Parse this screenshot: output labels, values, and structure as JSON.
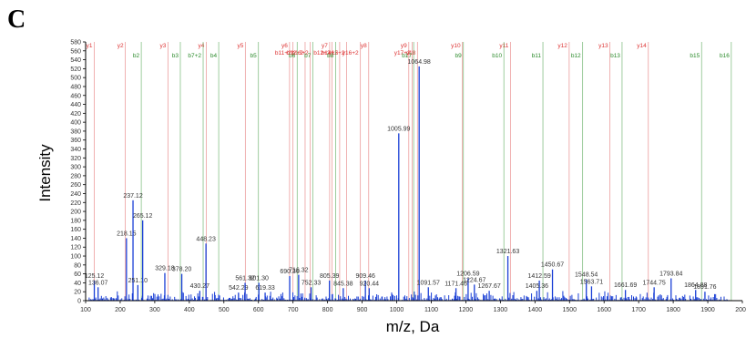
{
  "panel_label": "C",
  "chart_data": {
    "type": "bar",
    "title": "",
    "xlabel": "m/z, Da",
    "ylabel": "Intensity",
    "xlim": [
      100,
      2000
    ],
    "ylim": [
      0,
      580
    ],
    "x_ticks": [
      100,
      200,
      300,
      400,
      500,
      600,
      700,
      800,
      900,
      1000,
      1100,
      1200,
      1300,
      1400,
      1500,
      1600,
      1700,
      1800,
      1900,
      2000
    ],
    "y_ticks": [
      0,
      20,
      40,
      60,
      80,
      100,
      120,
      140,
      160,
      180,
      200,
      220,
      240,
      260,
      280,
      300,
      320,
      340,
      360,
      380,
      400,
      420,
      440,
      460,
      480,
      500,
      520,
      540,
      560,
      580
    ],
    "colors": {
      "peaks": "#1a3fd6",
      "y_ions": "#e26b6b",
      "b_ions": "#3c9a3c",
      "axis": "#000000"
    },
    "labeled_peaks": [
      {
        "x": 125.12,
        "y": 45,
        "label": "125.12"
      },
      {
        "x": 136.07,
        "y": 30,
        "label": "136.07"
      },
      {
        "x": 218.15,
        "y": 140,
        "label": "218.15"
      },
      {
        "x": 237.12,
        "y": 225,
        "label": "237.12"
      },
      {
        "x": 251.1,
        "y": 35,
        "label": "251.10"
      },
      {
        "x": 265.12,
        "y": 180,
        "label": "265.12"
      },
      {
        "x": 329.18,
        "y": 62,
        "label": "329.18"
      },
      {
        "x": 378.2,
        "y": 60,
        "label": "378.20"
      },
      {
        "x": 430.27,
        "y": 22,
        "label": "430.27"
      },
      {
        "x": 448.23,
        "y": 128,
        "label": "448.23"
      },
      {
        "x": 542.29,
        "y": 18,
        "label": "542.29"
      },
      {
        "x": 561.32,
        "y": 40,
        "label": "561.32"
      },
      {
        "x": 601.3,
        "y": 40,
        "label": "601.30"
      },
      {
        "x": 619.33,
        "y": 18,
        "label": "619.33"
      },
      {
        "x": 690.36,
        "y": 55,
        "label": "690.36"
      },
      {
        "x": 716.32,
        "y": 58,
        "label": "716.32"
      },
      {
        "x": 752.33,
        "y": 30,
        "label": "752.33"
      },
      {
        "x": 805.39,
        "y": 45,
        "label": "805.39"
      },
      {
        "x": 845.38,
        "y": 28,
        "label": "845.38"
      },
      {
        "x": 909.46,
        "y": 45,
        "label": "909.46"
      },
      {
        "x": 920.44,
        "y": 28,
        "label": "920.44"
      },
      {
        "x": 1005.99,
        "y": 375,
        "label": "1005.99"
      },
      {
        "x": 1064.98,
        "y": 525,
        "label": "1064.98"
      },
      {
        "x": 1091.57,
        "y": 30,
        "label": "1091.57"
      },
      {
        "x": 1171.46,
        "y": 28,
        "label": "1171.46"
      },
      {
        "x": 1206.59,
        "y": 50,
        "label": "1206.59"
      },
      {
        "x": 1224.67,
        "y": 36,
        "label": "1224.67"
      },
      {
        "x": 1267.67,
        "y": 22,
        "label": "1267.67"
      },
      {
        "x": 1321.63,
        "y": 100,
        "label": "1321.63"
      },
      {
        "x": 1412.59,
        "y": 45,
        "label": "1412.59"
      },
      {
        "x": 1405.36,
        "y": 22,
        "label": "1405.36"
      },
      {
        "x": 1450.67,
        "y": 70,
        "label": "1450.67"
      },
      {
        "x": 1548.54,
        "y": 48,
        "label": "1548.54"
      },
      {
        "x": 1563.71,
        "y": 32,
        "label": "1563.71"
      },
      {
        "x": 1661.69,
        "y": 24,
        "label": "1661.69"
      },
      {
        "x": 1744.75,
        "y": 30,
        "label": "1744.75"
      },
      {
        "x": 1793.84,
        "y": 50,
        "label": "1793.84"
      },
      {
        "x": 1864.88,
        "y": 24,
        "label": "1864.88"
      },
      {
        "x": 1891.76,
        "y": 20,
        "label": "1891.76"
      }
    ],
    "y_ions": [
      {
        "x": 125,
        "label": "y1"
      },
      {
        "x": 215,
        "label": "y2"
      },
      {
        "x": 338,
        "label": "y3"
      },
      {
        "x": 449,
        "label": "y4"
      },
      {
        "x": 562,
        "label": "y5"
      },
      {
        "x": 690,
        "label": "y6"
      },
      {
        "x": 806,
        "label": "y7"
      },
      {
        "x": 919,
        "label": "y8"
      },
      {
        "x": 1035,
        "label": "y9"
      },
      {
        "x": 1190,
        "label": "y10"
      },
      {
        "x": 1329,
        "label": "y11"
      },
      {
        "x": 1499,
        "label": "y12"
      },
      {
        "x": 1617,
        "label": "y13"
      },
      {
        "x": 1728,
        "label": "y14"
      },
      {
        "x": 700,
        "label": "b11+2"
      },
      {
        "x": 735,
        "label": "b12+2"
      },
      {
        "x": 750,
        "label": "b13+2"
      },
      {
        "x": 813,
        "label": "b12+2"
      },
      {
        "x": 835,
        "label": "b14+2"
      },
      {
        "x": 855,
        "label": "y15+2"
      },
      {
        "x": 895,
        "label": "y16+2"
      },
      {
        "x": 1045,
        "label": "y17+2"
      },
      {
        "x": 1060,
        "label": "y18"
      }
    ],
    "b_ions": [
      {
        "x": 261,
        "label": "b2"
      },
      {
        "x": 374,
        "label": "b3"
      },
      {
        "x": 440,
        "label": "b7+2"
      },
      {
        "x": 485,
        "label": "b4"
      },
      {
        "x": 600,
        "label": "b5"
      },
      {
        "x": 712,
        "label": "b6"
      },
      {
        "x": 757,
        "label": "b7"
      },
      {
        "x": 823,
        "label": "b8"
      },
      {
        "x": 1049,
        "label": "b17"
      },
      {
        "x": 1193,
        "label": "b9"
      },
      {
        "x": 1310,
        "label": "b10"
      },
      {
        "x": 1423,
        "label": "b11"
      },
      {
        "x": 1538,
        "label": "b12"
      },
      {
        "x": 1652,
        "label": "b13"
      },
      {
        "x": 1882,
        "label": "b15"
      },
      {
        "x": 1968,
        "label": "b16"
      }
    ]
  }
}
